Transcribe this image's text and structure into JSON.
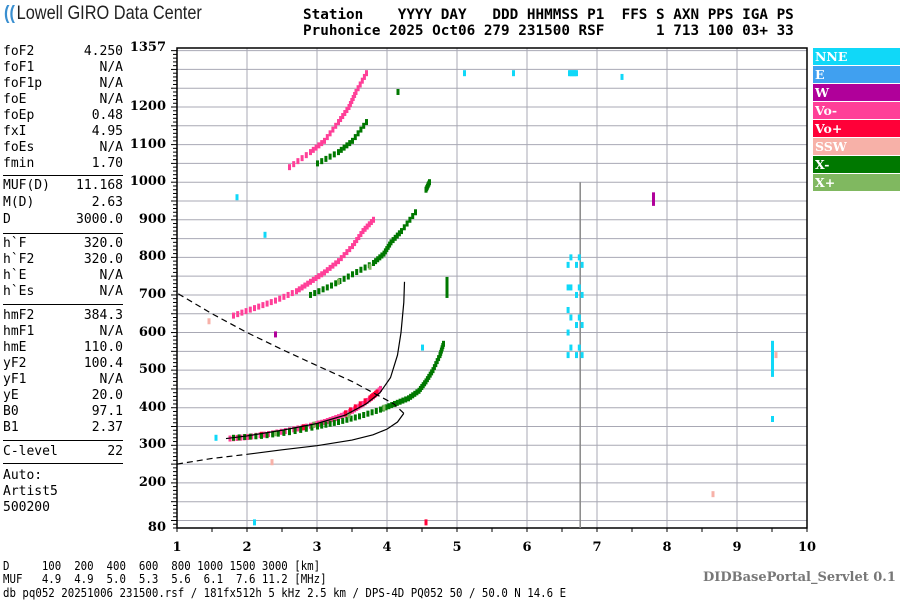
{
  "logo": {
    "text": "Lowell GIRO Data Center"
  },
  "header": {
    "line1": "Station    YYYY DAY   DDD HHMMSS P1  FFS S AXN PPS IGA PS",
    "line2": "Pruhonice 2025 Oct06 279 231500 RSF      1 713 100 03+ 33"
  },
  "params": [
    {
      "label": "foF2",
      "value": "4.250"
    },
    {
      "label": "foF1",
      "value": "N/A"
    },
    {
      "label": "foF1p",
      "value": "N/A"
    },
    {
      "label": "foE",
      "value": "N/A"
    },
    {
      "label": "foEp",
      "value": "0.48"
    },
    {
      "label": "fxI",
      "value": "4.95"
    },
    {
      "label": "foEs",
      "value": "N/A"
    },
    {
      "label": "fmin",
      "value": "1.70"
    },
    {
      "label": "MUF(D)",
      "value": "11.168"
    },
    {
      "label": "M(D)",
      "value": "2.63"
    },
    {
      "label": "D",
      "value": "3000.0"
    },
    {
      "label": "h`F",
      "value": "320.0"
    },
    {
      "label": "h`F2",
      "value": "320.0"
    },
    {
      "label": "h`E",
      "value": "N/A"
    },
    {
      "label": "h`Es",
      "value": "N/A"
    },
    {
      "label": "hmF2",
      "value": "384.3"
    },
    {
      "label": "hmF1",
      "value": "N/A"
    },
    {
      "label": "hmE",
      "value": "110.0"
    },
    {
      "label": "yF2",
      "value": "100.4"
    },
    {
      "label": "yF1",
      "value": "N/A"
    },
    {
      "label": "yE",
      "value": "20.0"
    },
    {
      "label": "B0",
      "value": "97.1"
    },
    {
      "label": "B1",
      "value": "2.37"
    },
    {
      "label": "C-level",
      "value": "22"
    }
  ],
  "auto": {
    "line1": "Auto:",
    "line2": "Artist5",
    "line3": "500200"
  },
  "bottom": {
    "d_row": "D     100  200  400  600  800 1000 1500 3000 [km]",
    "muf_row": "MUF   4.9  4.9  5.0  5.3  5.6  6.1  7.6 11.2 [MHz]",
    "file_row": "db pq052 20251006 231500.rsf / 181fx512h 5 kHz 2.5 km / DPS-4D PQ052 50 / 50.0 N 14.6 E",
    "servlet": "DIDBasePortal_Servlet 0.1"
  },
  "chart_data": {
    "type": "scatter",
    "xlim": [
      1,
      10
    ],
    "ylim": [
      80,
      1357
    ],
    "xticks": [
      "1",
      "2",
      "3",
      "4",
      "5",
      "6",
      "7",
      "8",
      "9",
      "10"
    ],
    "yticks": [
      "1357",
      "1200",
      "1100",
      "1000",
      "900",
      "800",
      "700",
      "600",
      "500",
      "400",
      "300",
      "200",
      "80"
    ],
    "grid": true,
    "legend_placement": "right",
    "legend": [
      {
        "name": "NNE",
        "color": "#10d8f8"
      },
      {
        "name": "E",
        "color": "#40a0f0"
      },
      {
        "name": "W",
        "color": "#b0009a"
      },
      {
        "name": "Vo-",
        "color": "#ff3f98"
      },
      {
        "name": "Vo+",
        "color": "#ff0038"
      },
      {
        "name": "SSW",
        "color": "#f7b1a8"
      },
      {
        "name": "X-",
        "color": "#007800"
      },
      {
        "name": "X+",
        "color": "#80b860"
      }
    ],
    "series": [
      {
        "name": "Vo-",
        "color": "#ff3f98",
        "points": [
          [
            1.75,
            318
          ],
          [
            2.0,
            322
          ],
          [
            2.3,
            330
          ],
          [
            2.6,
            340
          ],
          [
            2.9,
            352
          ],
          [
            3.1,
            362
          ],
          [
            3.3,
            375
          ],
          [
            3.5,
            392
          ],
          [
            3.65,
            410
          ],
          [
            3.8,
            430
          ],
          [
            3.9,
            450
          ],
          [
            1.8,
            645
          ],
          [
            2.1,
            665
          ],
          [
            2.4,
            685
          ],
          [
            2.7,
            710
          ],
          [
            2.9,
            735
          ],
          [
            3.1,
            760
          ],
          [
            3.3,
            790
          ],
          [
            3.5,
            830
          ],
          [
            3.65,
            870
          ],
          [
            3.8,
            900
          ],
          [
            2.6,
            1040
          ],
          [
            2.9,
            1080
          ],
          [
            3.1,
            1110
          ],
          [
            3.3,
            1160
          ],
          [
            3.45,
            1200
          ],
          [
            3.55,
            1240
          ],
          [
            3.7,
            1290
          ]
        ]
      },
      {
        "name": "Vo+",
        "color": "#ff0038",
        "points": [
          [
            2.2,
            328
          ],
          [
            2.8,
            348
          ],
          [
            3.4,
            385
          ],
          [
            3.75,
            425
          ],
          [
            3.85,
            440
          ],
          [
            4.55,
            95
          ]
        ]
      },
      {
        "name": "X-",
        "color": "#007800",
        "points": [
          [
            1.8,
            320
          ],
          [
            2.2,
            325
          ],
          [
            2.6,
            335
          ],
          [
            3.0,
            350
          ],
          [
            3.3,
            362
          ],
          [
            3.6,
            377
          ],
          [
            3.9,
            395
          ],
          [
            4.1,
            410
          ],
          [
            4.3,
            425
          ],
          [
            4.45,
            445
          ],
          [
            4.55,
            470
          ],
          [
            4.65,
            500
          ],
          [
            4.75,
            540
          ],
          [
            4.8,
            570
          ],
          [
            2.9,
            700
          ],
          [
            3.2,
            725
          ],
          [
            3.5,
            755
          ],
          [
            3.8,
            785
          ],
          [
            3.95,
            810
          ],
          [
            4.05,
            840
          ],
          [
            4.2,
            870
          ],
          [
            4.4,
            920
          ],
          [
            4.55,
            980
          ],
          [
            4.6,
            1000
          ],
          [
            3.0,
            1050
          ],
          [
            3.3,
            1080
          ],
          [
            3.5,
            1110
          ],
          [
            3.7,
            1160
          ],
          [
            4.85,
            700
          ],
          [
            4.85,
            740
          ],
          [
            4.15,
            1240
          ]
        ]
      },
      {
        "name": "X+",
        "color": "#80b860",
        "points": [
          [
            2.4,
            332
          ],
          [
            2.95,
            355
          ],
          [
            3.45,
            380
          ],
          [
            3.95,
            400
          ],
          [
            3.3,
            735
          ],
          [
            3.75,
            775
          ]
        ]
      },
      {
        "name": "NNE",
        "color": "#10d8f8",
        "points": [
          [
            6.58,
            540
          ],
          [
            6.58,
            600
          ],
          [
            6.58,
            660
          ],
          [
            6.58,
            720
          ],
          [
            6.58,
            780
          ],
          [
            6.62,
            560
          ],
          [
            6.62,
            640
          ],
          [
            6.62,
            720
          ],
          [
            6.62,
            800
          ],
          [
            6.7,
            540
          ],
          [
            6.7,
            620
          ],
          [
            6.7,
            700
          ],
          [
            6.7,
            780
          ],
          [
            6.74,
            560
          ],
          [
            6.74,
            640
          ],
          [
            6.74,
            720
          ],
          [
            6.74,
            800
          ],
          [
            6.78,
            540
          ],
          [
            6.78,
            620
          ],
          [
            6.78,
            700
          ],
          [
            6.78,
            780
          ],
          [
            5.1,
            1290
          ],
          [
            5.8,
            1290
          ],
          [
            6.6,
            1290
          ],
          [
            6.7,
            1290
          ],
          [
            7.35,
            1280
          ],
          [
            9.5,
            490
          ],
          [
            9.5,
            530
          ],
          [
            9.5,
            570
          ],
          [
            9.5,
            370
          ],
          [
            1.85,
            960
          ],
          [
            2.25,
            860
          ],
          [
            1.55,
            320
          ],
          [
            4.5,
            560
          ],
          [
            2.1,
            95
          ]
        ]
      },
      {
        "name": "W",
        "color": "#b0009a",
        "points": [
          [
            7.8,
            945
          ],
          [
            7.8,
            965
          ],
          [
            2.4,
            595
          ]
        ]
      },
      {
        "name": "SSW",
        "color": "#f7b1a8",
        "points": [
          [
            2.35,
            255
          ],
          [
            8.65,
            170
          ],
          [
            1.45,
            630
          ],
          [
            9.55,
            540
          ]
        ]
      }
    ],
    "vertical_lines": [
      {
        "x": 6.76,
        "y": [
          80,
          1000
        ],
        "color": "#888888"
      }
    ],
    "virtual_height_model": [
      [
        1.7,
        318
      ],
      [
        2.0,
        325
      ],
      [
        2.5,
        340
      ],
      [
        3.0,
        358
      ],
      [
        3.4,
        380
      ],
      [
        3.7,
        410
      ],
      [
        3.9,
        440
      ],
      [
        4.05,
        480
      ],
      [
        4.15,
        540
      ],
      [
        4.2,
        600
      ],
      [
        4.24,
        680
      ],
      [
        4.25,
        735
      ]
    ],
    "profile_bottomside": [
      [
        1.0,
        250
      ],
      [
        1.5,
        265
      ],
      [
        2.0,
        276
      ],
      [
        2.5,
        288
      ],
      [
        3.0,
        299
      ],
      [
        3.5,
        314
      ],
      [
        3.8,
        328
      ],
      [
        4.0,
        343
      ],
      [
        4.15,
        362
      ],
      [
        4.24,
        385
      ]
    ],
    "profile_topside": [
      [
        4.24,
        385
      ],
      [
        4.1,
        410
      ],
      [
        3.9,
        430
      ],
      [
        3.5,
        470
      ],
      [
        3.0,
        512
      ],
      [
        2.5,
        555
      ],
      [
        2.0,
        600
      ],
      [
        1.5,
        650
      ],
      [
        1.0,
        705
      ]
    ]
  }
}
